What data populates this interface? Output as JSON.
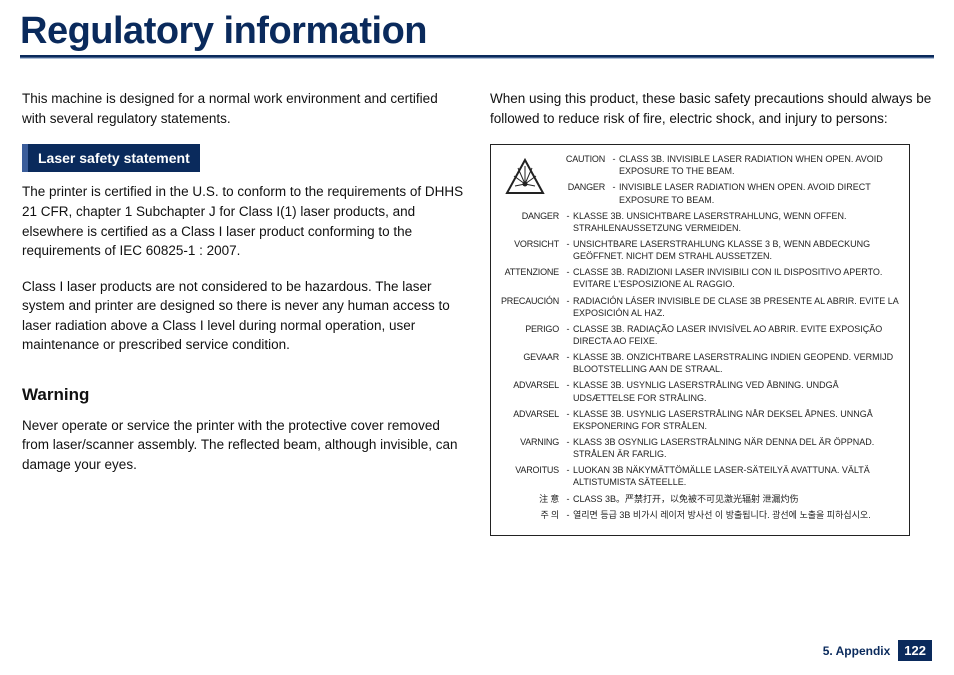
{
  "header": {
    "title": "Regulatory information"
  },
  "left_column": {
    "intro": "This machine is designed for a normal work environment and certified with several regulatory statements.",
    "section_title": "Laser safety statement",
    "para1": "The printer is certified in the U.S. to conform to the requirements of DHHS 21 CFR, chapter 1 Subchapter J for Class I(1) laser products, and elsewhere is certified as a Class I laser product conforming to the requirements of IEC 60825-1 : 2007.",
    "para2": "Class I laser products are not considered to be hazardous. The laser system and printer are designed so there is never any human access to laser radiation above a Class I level during normal operation, user maintenance or prescribed service condition.",
    "warning_heading": "Warning",
    "warning_text": "Never operate or service the printer with the protective cover removed from laser/scanner assembly. The reflected beam, although invisible, can damage your eyes."
  },
  "right_column": {
    "intro": "When using this product, these basic safety precautions should always be followed to reduce risk of fire, electric shock, and injury to persons:",
    "caution_rows": [
      {
        "label": "CAUTION",
        "text": "CLASS 3B. INVISIBLE LASER RADIATION WHEN OPEN. AVOID EXPOSURE TO THE BEAM."
      },
      {
        "label": "DANGER",
        "text": "INVISIBLE LASER RADIATION WHEN OPEN. AVOID DIRECT EXPOSURE TO BEAM."
      },
      {
        "label": "DANGER",
        "text": "KLASSE 3B. UNSICHTBARE LASERSTRAHLUNG, WENN OFFEN. STRAHLENAUSSETZUNG VERMEIDEN."
      },
      {
        "label": "VORSICHT",
        "text": "UNSICHTBARE LASERSTRAHLUNG KLASSE 3 B, WENN ABDECKUNG GEÖFFNET. NICHT DEM STRAHL AUSSETZEN."
      },
      {
        "label": "ATTENZIONE",
        "text": "CLASSE 3B. RADIZIONI LASER INVISIBILI CON IL DISPOSITIVO APERTO. EVITARE L'ESPOSIZIONE AL RAGGIO."
      },
      {
        "label": "PRECAUCIÓN",
        "text": "RADIACIÓN LÁSER INVISIBLE DE CLASE 3B PRESENTE AL ABRIR. EVITE LA EXPOSICIÓN AL HAZ."
      },
      {
        "label": "PERIGO",
        "text": "CLASSE 3B. RADIAÇÃO LASER INVISÍVEL AO ABRIR. EVITE EXPOSIÇÃO DIRECTA AO FEIXE."
      },
      {
        "label": "GEVAAR",
        "text": "KLASSE 3B. ONZICHTBARE LASERSTRALING INDIEN GEOPEND. VERMIJD BLOOTSTELLING AAN DE STRAAL."
      },
      {
        "label": "ADVARSEL",
        "text": "KLASSE 3B. USYNLIG LASERSTRÅLING VED ÅBNING. UNDGÅ UDSÆTTELSE FOR STRÅLING."
      },
      {
        "label": "ADVARSEL",
        "text": "KLASSE 3B. USYNLIG LASERSTRÅLING NÅR DEKSEL ÅPNES. UNNGÅ EKSPONERING FOR STRÅLEN."
      },
      {
        "label": "VARNING",
        "text": "KLASS 3B OSYNLIG LASERSTRÅLNING NÄR DENNA DEL ÄR ÖPPNAD. STRÅLEN ÄR FARLIG."
      },
      {
        "label": "VAROITUS",
        "text": "LUOKAN 3B NÄKYMÄTTÖMÄLLE LASER-SÄTEILYÄ AVATTUNA. VÄLTÄ ALTISTUMISTA SÄTEELLE."
      },
      {
        "label": "注    意",
        "text": "CLASS 3B。严禁打开，以免被不可见激光辐射 泄漏灼伤"
      },
      {
        "label": "주   의",
        "text": "열리면 등급 3B 비가시 레이저 방사선 이 방출됩니다. 광선에 노출을 피하십시오."
      }
    ]
  },
  "footer": {
    "chapter": "5. Appendix",
    "page_number": "122"
  },
  "colors": {
    "primary": "#0a2a5c",
    "text": "#111111",
    "border": "#222222",
    "white": "#ffffff"
  }
}
